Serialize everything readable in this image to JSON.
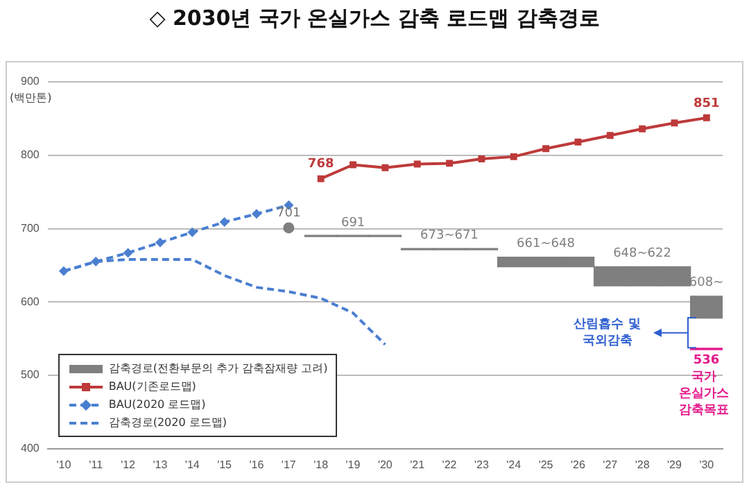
{
  "chart_data": {
    "type": "line",
    "title": "◇ 2030년 국가 온실가스 감축 로드맵 감축경로",
    "ylabel": "(백만톤)",
    "categories": [
      "'10",
      "'11",
      "'12",
      "'13",
      "'14",
      "'15",
      "'16",
      "'17",
      "'18",
      "'19",
      "'20",
      "'21",
      "'22",
      "'23",
      "'24",
      "'25",
      "'26",
      "'27",
      "'28",
      "'29",
      "'30"
    ],
    "ylim": [
      400,
      900
    ],
    "yticks": [
      400,
      500,
      600,
      700,
      800,
      900
    ],
    "grid": "y",
    "legend": "bottom left",
    "series": [
      {
        "name": "감축경로(전환부문의 추가 감축잠재량 고려)",
        "type": "bar",
        "color": "#7f7f7f",
        "base": [
          null,
          null,
          null,
          null,
          null,
          null,
          null,
          null,
          689,
          689,
          689,
          671,
          671,
          671,
          648,
          648,
          648,
          622,
          622,
          622,
          578
        ],
        "values": [
          null,
          null,
          null,
          null,
          null,
          null,
          null,
          null,
          2,
          2,
          2,
          2,
          2,
          2,
          13,
          13,
          13,
          26,
          26,
          26,
          30
        ]
      },
      {
        "name": "BAU(기존로드맵)",
        "color": "#be3a3a",
        "marker": "square",
        "line_style": "solid",
        "values": [
          null,
          null,
          null,
          null,
          null,
          null,
          null,
          null,
          768,
          787,
          783,
          788,
          789,
          795,
          798,
          809,
          818,
          827,
          836,
          844,
          851
        ],
        "value_labels": [
          null,
          null,
          null,
          null,
          null,
          null,
          null,
          null,
          "768",
          null,
          null,
          null,
          null,
          null,
          null,
          null,
          null,
          null,
          null,
          null,
          "851"
        ]
      },
      {
        "name": "BAU(2020 로드맵)",
        "color": "#4a7fd0",
        "marker": "diamond",
        "line_style": "dashed",
        "values": [
          642,
          655,
          667,
          681,
          695,
          709,
          720,
          732,
          null,
          null,
          null,
          null,
          null,
          null,
          null,
          null,
          null,
          null,
          null,
          null,
          null
        ]
      },
      {
        "name": "감축경로(2020 로드맵)",
        "color": "#4a7fd0",
        "marker": "none",
        "line_style": "dashed",
        "values": [
          642,
          655,
          658,
          658,
          658,
          636,
          620,
          614,
          605,
          585,
          542,
          null,
          null,
          null,
          null,
          null,
          null,
          null,
          null,
          null,
          null
        ]
      },
      {
        "type": "scatter",
        "color": "#7f7f7f",
        "marker": "circle",
        "values": [
          null,
          null,
          null,
          null,
          null,
          null,
          null,
          701,
          null,
          null,
          null,
          null,
          null,
          null,
          null,
          null,
          null,
          null,
          null,
          null,
          null
        ],
        "value_labels": [
          null,
          null,
          null,
          null,
          null,
          null,
          null,
          "701",
          null,
          null,
          null,
          null,
          null,
          null,
          null,
          null,
          null,
          null,
          null,
          null,
          null
        ]
      },
      {
        "type": "bar",
        "color": "#e4198c",
        "base": [
          null,
          null,
          null,
          null,
          null,
          null,
          null,
          null,
          null,
          null,
          null,
          null,
          null,
          null,
          null,
          null,
          null,
          null,
          null,
          null,
          535
        ],
        "values": [
          null,
          null,
          null,
          null,
          null,
          null,
          null,
          null,
          null,
          null,
          null,
          null,
          null,
          null,
          null,
          null,
          null,
          null,
          null,
          null,
          2
        ]
      }
    ],
    "annotations": [
      {
        "text": "691",
        "x": "'19",
        "y": 691
      },
      {
        "text": "673~671",
        "x": "'22",
        "y": 673
      },
      {
        "text": "661~648",
        "x": "'25",
        "y": 661
      },
      {
        "text": "648~622",
        "x": "'28",
        "y": 648
      },
      {
        "text": "608~",
        "x": "'30",
        "y": 608
      },
      "산림흡수 및 국외감축",
      {
        "text": "536",
        "x": "'30",
        "y": 536
      },
      "국가 온실가스 감축목표"
    ]
  }
}
